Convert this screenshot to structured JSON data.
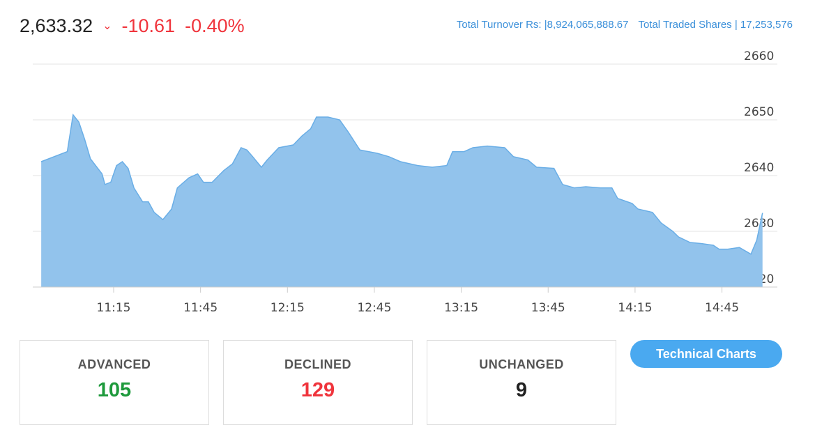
{
  "header": {
    "index_value": "2,633.32",
    "change": "-10.61",
    "percent_change": "-0.40%",
    "direction_icon": "chevron-down-icon",
    "turnover_label": "Total Turnover Rs: |",
    "turnover_value": "8,924,065,888.67",
    "shares_label": "Total Traded Shares |",
    "shares_value": "17,253,576"
  },
  "colors": {
    "up": "#1e9a3c",
    "down": "#f0343c",
    "area": "#92c3ec",
    "line": "#6aaee6",
    "accent": "#4aa9f0"
  },
  "chart_data": {
    "type": "area",
    "grid": true,
    "y_axis_position": "right",
    "ylim": [
      2620,
      2660
    ],
    "yticks": [
      2620,
      2630,
      2640,
      2650,
      2660
    ],
    "xticks": [
      "11:15",
      "11:45",
      "12:15",
      "12:45",
      "13:15",
      "13:45",
      "14:15",
      "14:45"
    ],
    "x": [
      "10:50",
      "10:59",
      "11:01",
      "11:03",
      "11:05",
      "11:07",
      "11:11",
      "11:12",
      "11:14",
      "11:16",
      "11:18",
      "11:20",
      "11:22",
      "11:25",
      "11:27",
      "11:29",
      "11:32",
      "11:35",
      "11:37",
      "11:41",
      "11:44",
      "11:46",
      "11:49",
      "11:53",
      "11:56",
      "11:59",
      "12:01",
      "12:03",
      "12:06",
      "12:08",
      "12:12",
      "12:17",
      "12:20",
      "12:23",
      "12:25",
      "12:29",
      "12:33",
      "12:36",
      "12:40",
      "12:46",
      "12:50",
      "12:54",
      "13:00",
      "13:05",
      "13:10",
      "13:12",
      "13:16",
      "13:19",
      "13:24",
      "13:30",
      "13:33",
      "13:38",
      "13:41",
      "13:47",
      "13:50",
      "13:54",
      "13:58",
      "14:03",
      "14:07",
      "14:09",
      "14:14",
      "14:16",
      "14:21",
      "14:24",
      "14:28",
      "14:30",
      "14:34",
      "14:38",
      "14:42",
      "14:44",
      "14:47",
      "14:51",
      "14:55",
      "14:57",
      "14:59"
    ],
    "y": [
      2642.5,
      2644.3,
      2650.9,
      2649.6,
      2646.5,
      2643,
      2640.3,
      2638.4,
      2638.8,
      2641.8,
      2642.5,
      2641.3,
      2637.8,
      2635.3,
      2635.3,
      2633.4,
      2632.1,
      2634,
      2637.8,
      2639.6,
      2640.3,
      2638.8,
      2638.8,
      2640.9,
      2642.1,
      2645,
      2644.6,
      2643.4,
      2641.5,
      2642.8,
      2645,
      2645.5,
      2647.1,
      2648.4,
      2650.5,
      2650.5,
      2650,
      2647.8,
      2644.6,
      2644,
      2643.4,
      2642.5,
      2641.8,
      2641.5,
      2641.8,
      2644.3,
      2644.3,
      2645,
      2645.3,
      2645,
      2643.4,
      2642.8,
      2641.5,
      2641.3,
      2638.4,
      2637.8,
      2638,
      2637.8,
      2637.8,
      2635.9,
      2635,
      2634,
      2633.4,
      2631.5,
      2630,
      2629,
      2628,
      2627.8,
      2627.5,
      2626.8,
      2626.8,
      2627.1,
      2625.9,
      2628.4,
      2633.3
    ]
  },
  "cards": [
    {
      "label": "ADVANCED",
      "value": "105"
    },
    {
      "label": "DECLINED",
      "value": "129"
    },
    {
      "label": "UNCHANGED",
      "value": "9"
    }
  ],
  "technical_charts_label": "Technical Charts"
}
